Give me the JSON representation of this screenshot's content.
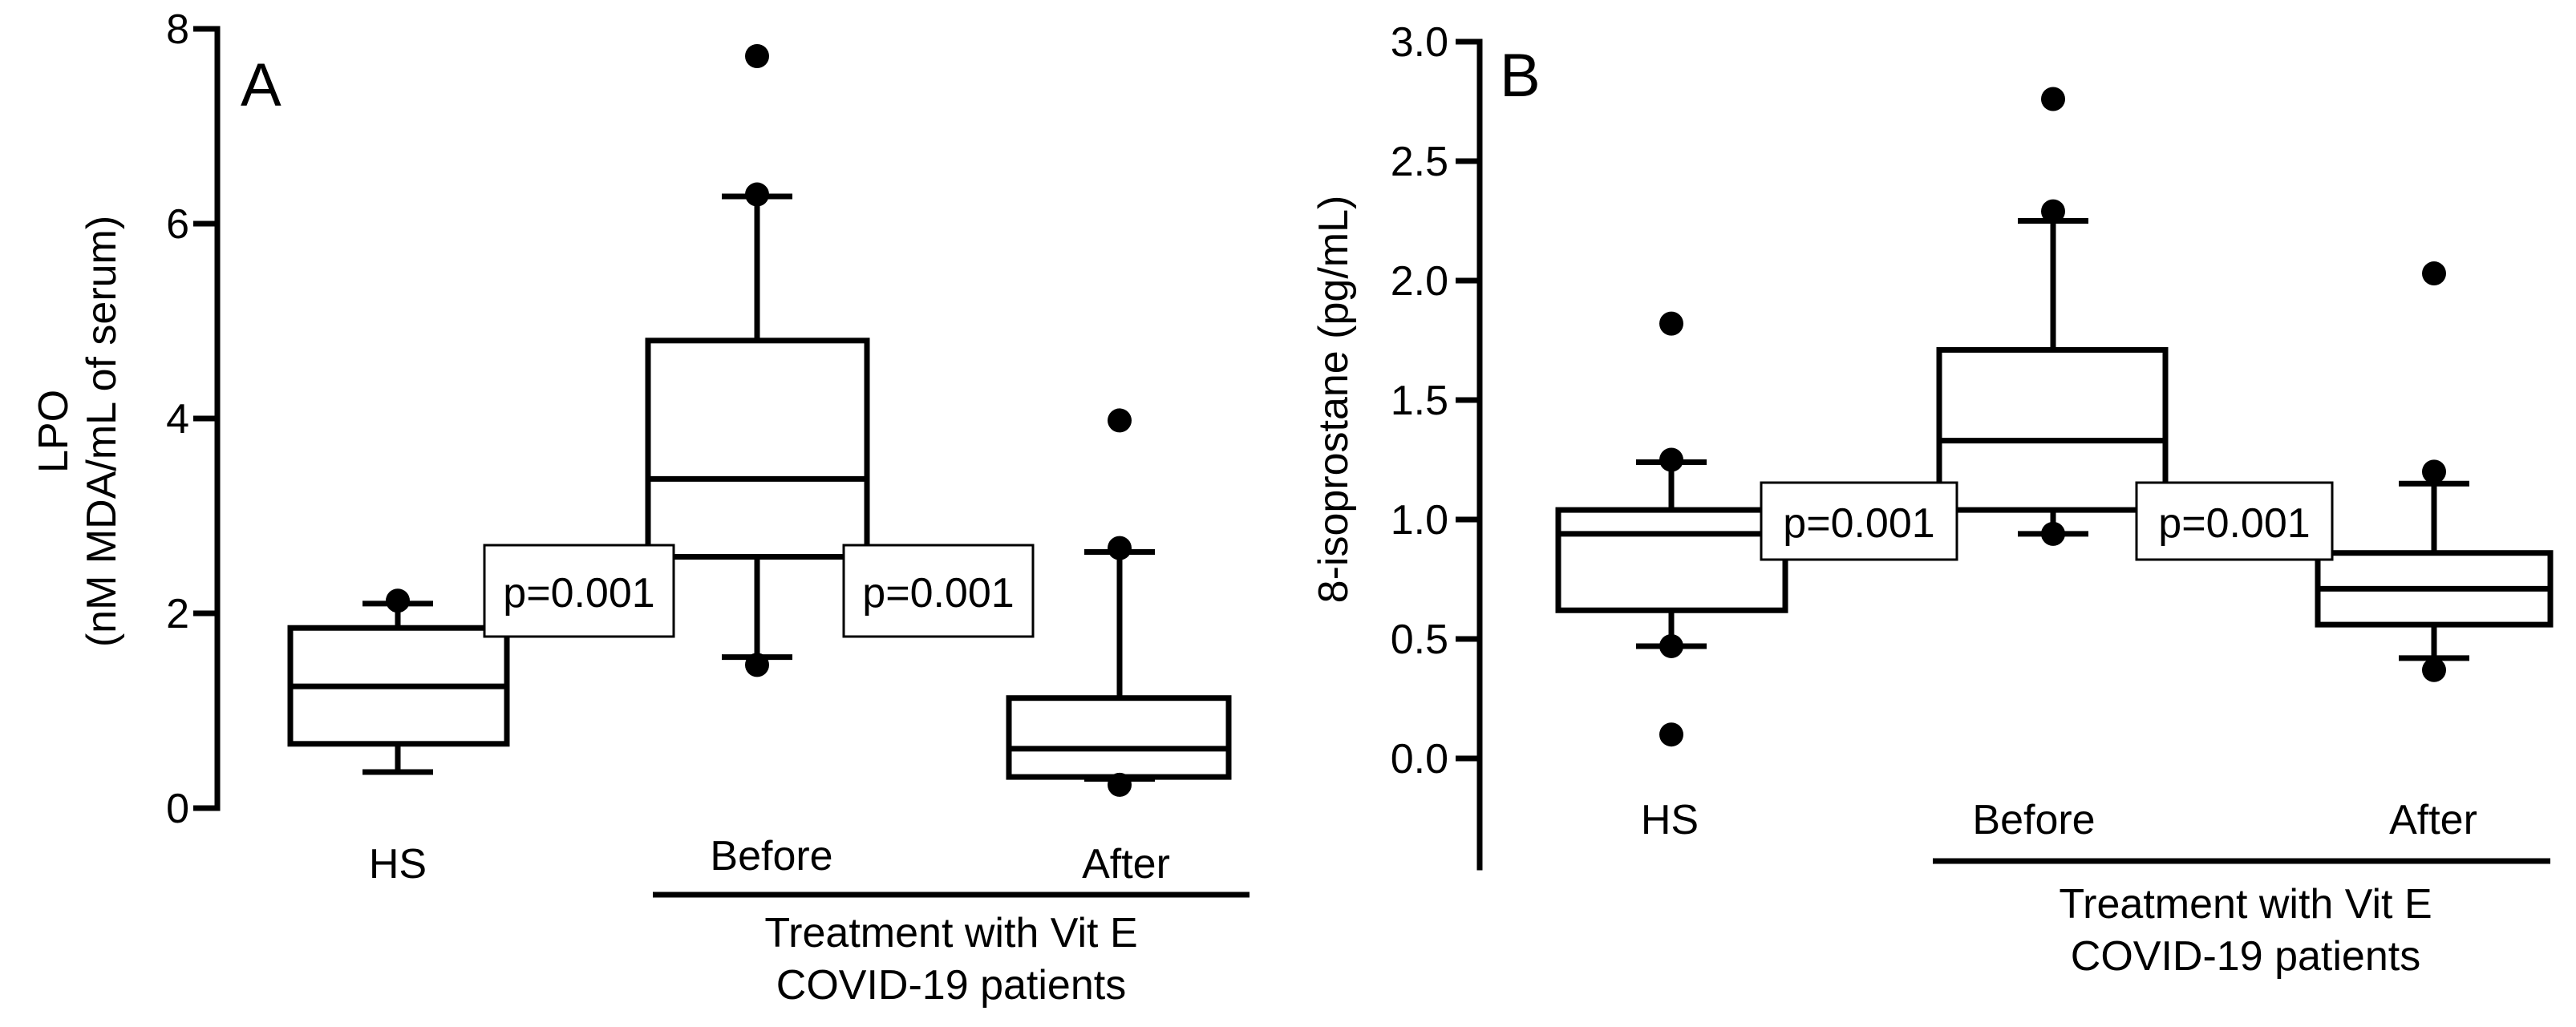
{
  "chart_data": [
    {
      "type": "box",
      "panel_label": "A",
      "ylabel_line1": "LPO",
      "ylabel_line2": "(nM MDA/mL of serum)",
      "ylim": [
        0,
        8
      ],
      "yticks": [
        0,
        2,
        4,
        6,
        8
      ],
      "categories": [
        "HS",
        "Before",
        "After"
      ],
      "boxes": [
        {
          "name": "HS",
          "min": 0.37,
          "q1": 0.66,
          "median": 1.25,
          "q3": 1.85,
          "max": 2.1,
          "outliers": [
            2.13
          ]
        },
        {
          "name": "Before",
          "min": 1.55,
          "q1": 2.58,
          "median": 3.38,
          "q3": 4.8,
          "max": 6.28,
          "outliers": [
            1.47,
            6.3,
            7.72
          ]
        },
        {
          "name": "After",
          "min": 0.3,
          "q1": 0.32,
          "median": 0.61,
          "q3": 1.13,
          "max": 2.63,
          "outliers": [
            0.24,
            2.67,
            3.98
          ]
        }
      ],
      "annotations": [
        "p=0.001",
        "p=0.001"
      ],
      "group_label_line1": "Treatment with Vit E",
      "group_label_line2": "COVID-19 patients"
    },
    {
      "type": "box",
      "panel_label": "B",
      "ylabel": "8-isoprostane (pg/mL)",
      "ylim": [
        0,
        3.0
      ],
      "yticks": [
        "0.0",
        "0.5",
        "1.0",
        "1.5",
        "2.0",
        "2.5",
        "3.0"
      ],
      "categories": [
        "HS",
        "Before",
        "After"
      ],
      "boxes": [
        {
          "name": "HS",
          "min": 0.47,
          "q1": 0.62,
          "median": 0.94,
          "q3": 1.04,
          "max": 1.24,
          "outliers": [
            0.1,
            0.47,
            1.25,
            1.82
          ]
        },
        {
          "name": "Before",
          "min": 0.94,
          "q1": 1.04,
          "median": 1.33,
          "q3": 1.71,
          "max": 2.25,
          "outliers": [
            0.94,
            2.29,
            2.76
          ]
        },
        {
          "name": "After",
          "min": 0.42,
          "q1": 0.56,
          "median": 0.71,
          "q3": 0.86,
          "max": 1.15,
          "outliers": [
            0.37,
            1.2,
            2.03
          ]
        }
      ],
      "annotations": [
        "p=0.001",
        "p=0.001"
      ],
      "group_label_line1": "Treatment with Vit E",
      "group_label_line2": "COVID-19 patients"
    }
  ]
}
